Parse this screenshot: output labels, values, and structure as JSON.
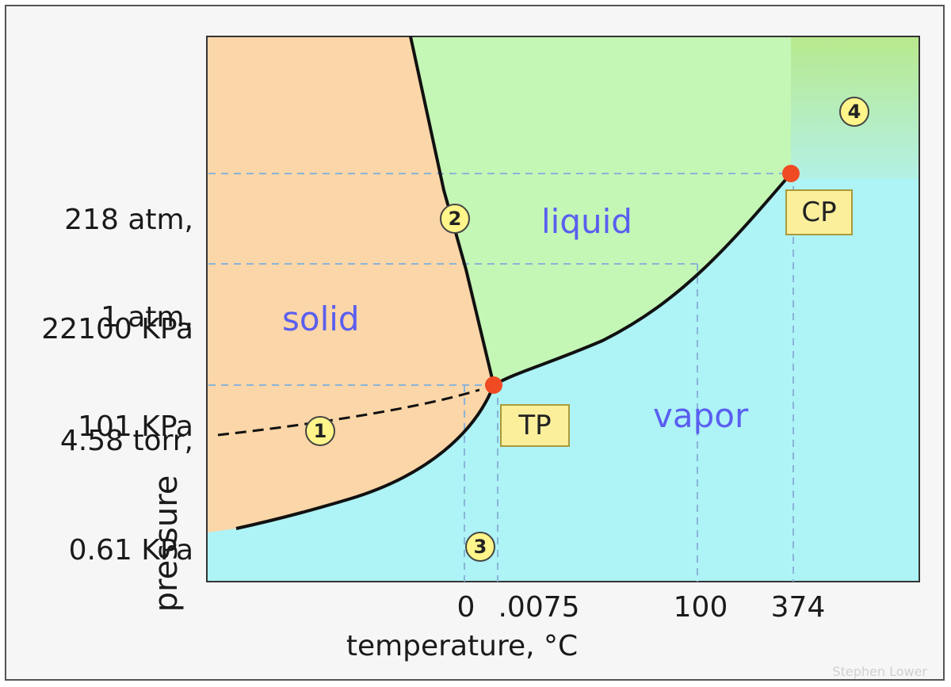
{
  "diagram": {
    "axes": {
      "x_label": "temperature,  °C",
      "y_label": "pressure",
      "x_ticks": [
        "0",
        ".0075",
        "100",
        "374"
      ],
      "y_ticks": [
        {
          "line1": "218 atm,",
          "line2": "22100 KPa"
        },
        {
          "line1": "1 atm,",
          "line2": "101 KPa"
        },
        {
          "line1": "4.58 torr,",
          "line2": "0.61 KPa"
        }
      ]
    },
    "regions": [
      "solid",
      "liquid",
      "vapor"
    ],
    "points": [
      "TP",
      "CP"
    ],
    "markers": [
      "1",
      "2",
      "3",
      "4"
    ],
    "credit": "Stephen Lower",
    "colors": {
      "solid": "#fbd6a8",
      "liquid": "#c4f6b6",
      "vapor": "#aef3f6",
      "supercritical": "#b9e994",
      "point": "#f04a23",
      "guide": "#8ab4d8",
      "region_text": "#5a5ef0"
    }
  }
}
